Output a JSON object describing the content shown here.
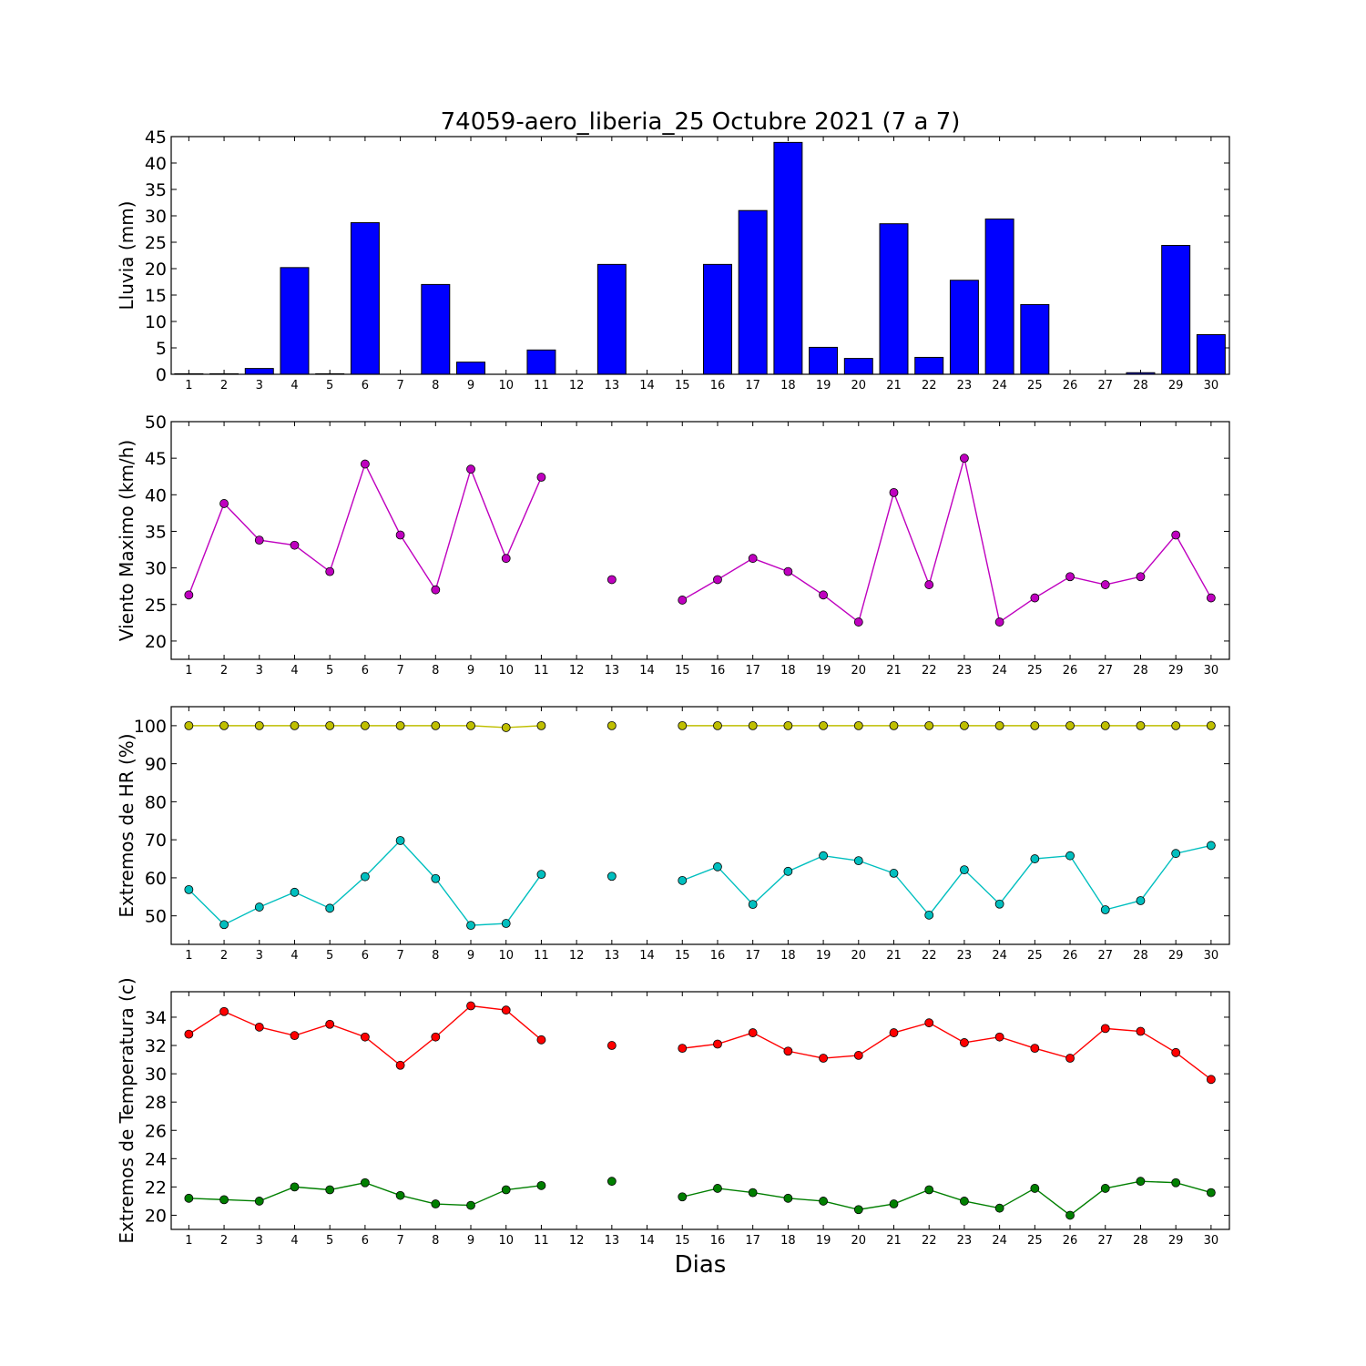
{
  "figure": {
    "title": "74059-aero_liberia_25 Octubre 2021  (7 a 7)",
    "xlabel": "Dias"
  },
  "chart_data": [
    {
      "type": "bar",
      "ylabel": "Lluvia (mm)",
      "ylim": [
        0,
        45
      ],
      "yticks": [
        0,
        5,
        10,
        15,
        20,
        25,
        30,
        35,
        40,
        45
      ],
      "categories": [
        1,
        2,
        3,
        4,
        5,
        6,
        7,
        8,
        9,
        10,
        11,
        12,
        13,
        14,
        15,
        16,
        17,
        18,
        19,
        20,
        21,
        22,
        23,
        24,
        25,
        26,
        27,
        28,
        29,
        30
      ],
      "series": [
        {
          "color": "#0000ff",
          "values": [
            0.1,
            0.1,
            1.1,
            20.2,
            0.1,
            28.7,
            0,
            17,
            2.3,
            0,
            4.6,
            0,
            20.8,
            0,
            0,
            20.8,
            31,
            43.9,
            5.1,
            3,
            28.5,
            3.2,
            17.8,
            29.4,
            13.2,
            0,
            0,
            0.3,
            24.4,
            7.5
          ]
        }
      ],
      "grid": false
    },
    {
      "type": "line",
      "ylabel": "Viento Maximo (km/h)",
      "ylim": [
        17.5,
        50
      ],
      "yticks": [
        20,
        25,
        30,
        35,
        40,
        45,
        50
      ],
      "x": [
        1,
        2,
        3,
        4,
        5,
        6,
        7,
        8,
        9,
        10,
        11,
        12,
        13,
        14,
        15,
        16,
        17,
        18,
        19,
        20,
        21,
        22,
        23,
        24,
        25,
        26,
        27,
        28,
        29,
        30
      ],
      "series": [
        {
          "color": "#bf00bf",
          "values": [
            26.3,
            38.8,
            33.8,
            33.1,
            29.5,
            44.2,
            34.5,
            27,
            43.5,
            31.3,
            42.4,
            null,
            28.4,
            null,
            25.6,
            28.4,
            31.3,
            29.5,
            26.3,
            22.6,
            40.3,
            27.7,
            45,
            22.6,
            25.9,
            28.8,
            27.7,
            28.8,
            34.5,
            25.9
          ]
        }
      ],
      "grid": false
    },
    {
      "type": "line",
      "ylabel": "Extremos de HR (%)",
      "ylim": [
        42.5,
        105
      ],
      "yticks": [
        50,
        60,
        70,
        80,
        90,
        100
      ],
      "x": [
        1,
        2,
        3,
        4,
        5,
        6,
        7,
        8,
        9,
        10,
        11,
        12,
        13,
        14,
        15,
        16,
        17,
        18,
        19,
        20,
        21,
        22,
        23,
        24,
        25,
        26,
        27,
        28,
        29,
        30
      ],
      "series": [
        {
          "color": "#bfbf00",
          "values": [
            100,
            100,
            100,
            100,
            100,
            100,
            100,
            100,
            100,
            99.5,
            100,
            null,
            100,
            null,
            100,
            100,
            100,
            100,
            100,
            100,
            100,
            100,
            100,
            100,
            100,
            100,
            100,
            100,
            100,
            100
          ]
        },
        {
          "color": "#00bfbf",
          "values": [
            56.9,
            47.7,
            52.3,
            56.2,
            52,
            60.3,
            69.8,
            59.8,
            47.5,
            48,
            60.9,
            null,
            60.4,
            null,
            59.3,
            62.9,
            53,
            61.7,
            65.8,
            64.5,
            61.2,
            50.2,
            62.1,
            53.1,
            65,
            65.8,
            51.6,
            54,
            66.4,
            68.5
          ]
        }
      ],
      "grid": false
    },
    {
      "type": "line",
      "ylabel": "Extremos de Temperatura (c)",
      "ylim": [
        19,
        35.8
      ],
      "yticks": [
        20,
        22,
        24,
        26,
        28,
        30,
        32,
        34
      ],
      "x": [
        1,
        2,
        3,
        4,
        5,
        6,
        7,
        8,
        9,
        10,
        11,
        12,
        13,
        14,
        15,
        16,
        17,
        18,
        19,
        20,
        21,
        22,
        23,
        24,
        25,
        26,
        27,
        28,
        29,
        30
      ],
      "series": [
        {
          "color": "#ff0000",
          "values": [
            32.8,
            34.4,
            33.3,
            32.7,
            33.5,
            32.6,
            30.6,
            32.6,
            34.8,
            34.5,
            32.4,
            null,
            32,
            null,
            31.8,
            32.1,
            32.9,
            31.6,
            31.1,
            31.3,
            32.9,
            33.6,
            32.2,
            32.6,
            31.8,
            31.1,
            33.2,
            33,
            31.5,
            29.6
          ]
        },
        {
          "color": "#007f00",
          "values": [
            21.2,
            21.1,
            21,
            22,
            21.8,
            22.3,
            21.4,
            20.8,
            20.7,
            21.8,
            22.1,
            null,
            22.4,
            null,
            21.3,
            21.9,
            21.6,
            21.2,
            21,
            20.4,
            20.8,
            21.8,
            21,
            20.5,
            21.9,
            20,
            21.9,
            22.4,
            22.3,
            21.6
          ]
        }
      ],
      "grid": false
    }
  ]
}
